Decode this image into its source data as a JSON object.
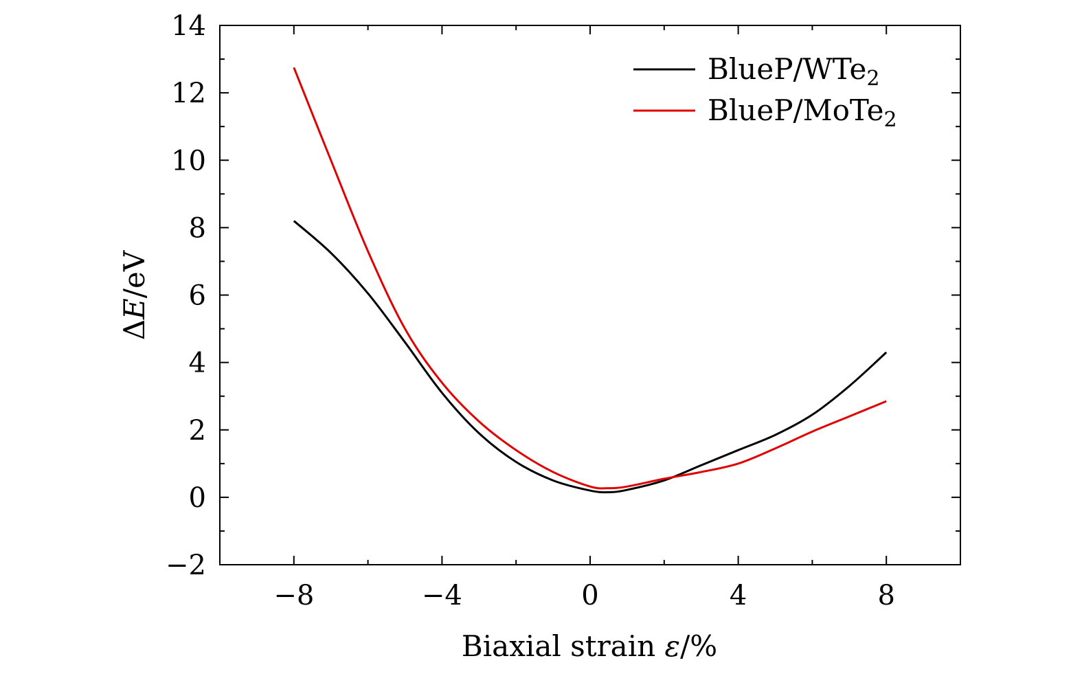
{
  "chart_data": {
    "type": "line",
    "title": "",
    "xlabel": "Biaxial strain",
    "xlabel_symbol": "ε",
    "xlabel_unit": "/%",
    "ylabel_delta": "Δ",
    "ylabel_symbol": "E",
    "ylabel_unit": "/eV",
    "xlim": [
      -10,
      10
    ],
    "ylim": [
      -2,
      14
    ],
    "xticks": [
      -8,
      -4,
      0,
      4,
      8
    ],
    "xtick_labels": [
      "−8",
      "−4",
      "0",
      "4",
      "8"
    ],
    "yticks": [
      -2,
      0,
      2,
      4,
      6,
      8,
      10,
      12,
      14
    ],
    "ytick_labels": [
      "−2",
      "0",
      "2",
      "4",
      "6",
      "8",
      "10",
      "12",
      "14"
    ],
    "legend_position": "top-right",
    "series": [
      {
        "name": "BlueP/WTe",
        "subscript": "2",
        "color": "#000000",
        "x": [
          -8,
          -7,
          -6,
          -5,
          -4,
          -3,
          -2,
          -1,
          0,
          0.5,
          1,
          2,
          3,
          4,
          5,
          6,
          7,
          8
        ],
        "y": [
          8.2,
          7.25,
          6.05,
          4.6,
          3.1,
          1.9,
          1.05,
          0.5,
          0.2,
          0.15,
          0.22,
          0.5,
          0.95,
          1.4,
          1.85,
          2.45,
          3.3,
          4.3
        ]
      },
      {
        "name": "BlueP/MoTe",
        "subscript": "2",
        "color": "#e00000",
        "x": [
          -8,
          -7,
          -6,
          -5,
          -4,
          -3,
          -2,
          -1,
          0,
          0.5,
          1,
          2,
          3,
          4,
          5,
          6,
          7,
          8
        ],
        "y": [
          12.75,
          10.0,
          7.3,
          5.0,
          3.4,
          2.25,
          1.4,
          0.75,
          0.32,
          0.27,
          0.32,
          0.55,
          0.75,
          1.0,
          1.45,
          1.95,
          2.4,
          2.85
        ]
      }
    ]
  }
}
